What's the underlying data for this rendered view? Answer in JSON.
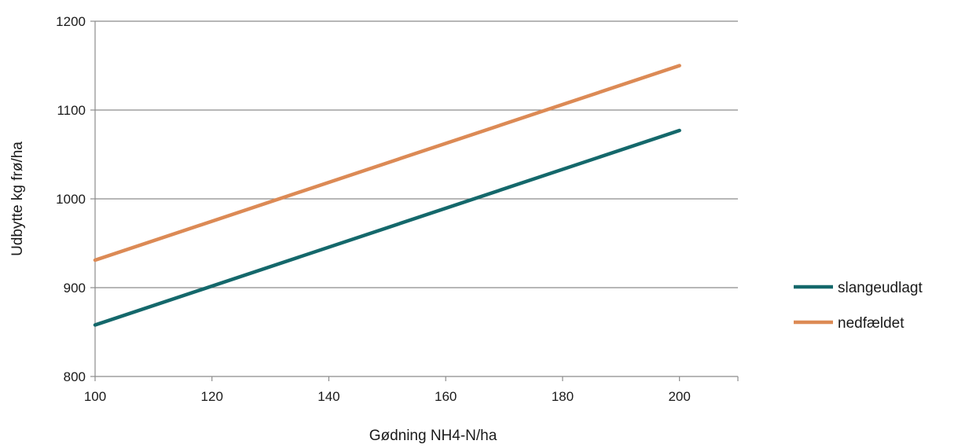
{
  "chart_data": {
    "type": "line",
    "title": "",
    "xlabel": "Gødning NH4-N/ha",
    "ylabel": "Udbytte kg frø/ha",
    "x": [
      100,
      200
    ],
    "xlim": [
      100,
      210
    ],
    "ylim": [
      800,
      1200
    ],
    "xticks": [
      "100",
      "120",
      "140",
      "160",
      "180",
      "200"
    ],
    "yticks": [
      "800",
      "900",
      "1000",
      "1100",
      "1200"
    ],
    "grid": "horizontal",
    "legend_position": "right",
    "series": [
      {
        "name": "slangeudlagt",
        "color": "#14686b",
        "values": [
          858,
          1077
        ]
      },
      {
        "name": "nedfældet",
        "color": "#dc8a55",
        "values": [
          931,
          1150
        ]
      }
    ]
  }
}
